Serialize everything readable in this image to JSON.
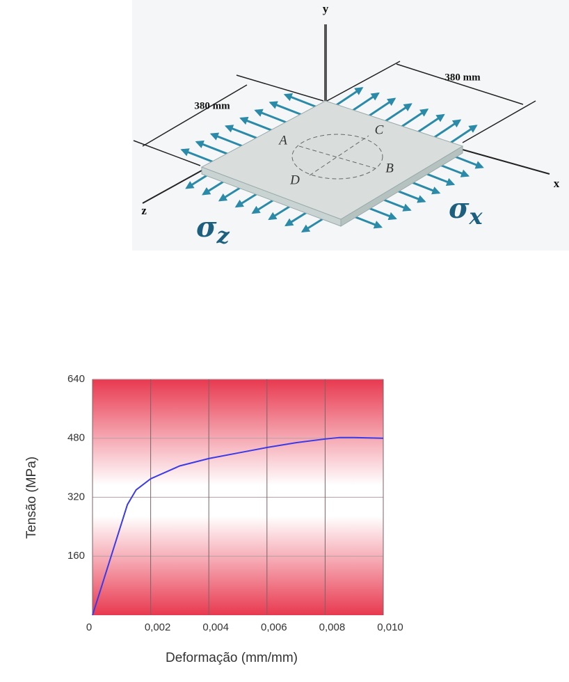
{
  "diagram": {
    "axes": {
      "y": "y",
      "x": "x",
      "z": "z"
    },
    "dimensions": [
      "380 mm",
      "380 mm"
    ],
    "points": {
      "A": "A",
      "B": "B",
      "C": "C",
      "D": "D"
    },
    "stress_z": {
      "symbol": "σ",
      "sub": "z"
    },
    "stress_x": {
      "symbol": "σ",
      "sub": "x"
    }
  },
  "chart_data": {
    "type": "line",
    "x_label": "Deformação (mm/mm)",
    "y_label": "Tensão (MPa)",
    "x": [
      0,
      0.0006,
      0.0012,
      0.0015,
      0.002,
      0.003,
      0.004,
      0.005,
      0.006,
      0.007,
      0.008,
      0.0085,
      0.009,
      0.01
    ],
    "values": [
      0,
      150,
      300,
      340,
      370,
      405,
      425,
      440,
      455,
      468,
      478,
      482,
      482,
      480
    ],
    "color": "#3a3ae8",
    "xlim": [
      0,
      0.01
    ],
    "ylim": [
      0,
      640
    ],
    "xticks": [
      0,
      {
        "value": 0.002,
        "label": "0,002"
      },
      {
        "value": 0.004,
        "label": "0,004"
      },
      {
        "value": 0.006,
        "label": "0,006"
      },
      {
        "value": 0.008,
        "label": "0,008"
      },
      {
        "value": 0.01,
        "label": "0,010"
      }
    ],
    "yticks": [
      160,
      320,
      480,
      640
    ],
    "grid": true
  }
}
